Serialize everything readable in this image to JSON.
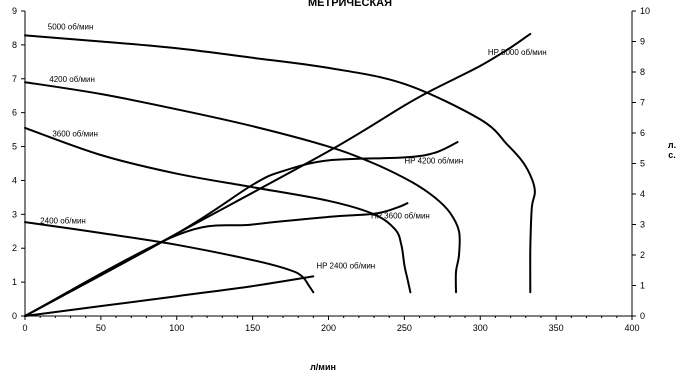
{
  "chart_data": {
    "type": "line",
    "title": "МЕТРИЧЕСКАЯ",
    "xlabel": "л/мин",
    "ylabel_right": "л. с.",
    "xlim": [
      0,
      400
    ],
    "ylim": [
      0,
      9
    ],
    "ylim_right": [
      0,
      10
    ],
    "x_ticks": [
      "0",
      "50",
      "100",
      "150",
      "200",
      "250",
      "300",
      "350",
      "400"
    ],
    "y_ticks": [
      "0",
      "1",
      "2",
      "3",
      "4",
      "5",
      "6",
      "7",
      "8",
      "9"
    ],
    "y_right_ticks": [
      "0",
      "1",
      "2",
      "3",
      "4",
      "5",
      "6",
      "7",
      "8",
      "9",
      "10"
    ],
    "grid": false,
    "series": [
      {
        "name": "5000 об/мин",
        "axis": "left",
        "x": [
          0,
          50,
          100,
          150,
          200,
          250,
          300,
          318,
          328,
          334,
          336,
          334,
          333,
          333
        ],
        "y": [
          8.28,
          8.1,
          7.9,
          7.62,
          7.32,
          6.85,
          5.8,
          5.05,
          4.55,
          4.05,
          3.65,
          3.2,
          2.0,
          0.7
        ]
      },
      {
        "name": "4200 об/мин",
        "axis": "left",
        "x": [
          0,
          50,
          100,
          150,
          200,
          230,
          255,
          270,
          280,
          286,
          286,
          284,
          284
        ],
        "y": [
          6.9,
          6.55,
          6.1,
          5.6,
          5.0,
          4.5,
          3.95,
          3.5,
          3.05,
          2.5,
          1.8,
          1.3,
          0.7
        ]
      },
      {
        "name": "3600 об/мин",
        "axis": "left",
        "x": [
          0,
          50,
          100,
          150,
          200,
          230,
          244,
          248,
          250,
          252,
          254
        ],
        "y": [
          5.55,
          4.75,
          4.2,
          3.8,
          3.4,
          3.0,
          2.55,
          2.1,
          1.5,
          1.1,
          0.7
        ]
      },
      {
        "name": "2400 об/мин",
        "axis": "left",
        "x": [
          0,
          50,
          100,
          150,
          175,
          183,
          187,
          190
        ],
        "y": [
          2.77,
          2.45,
          2.1,
          1.65,
          1.35,
          1.15,
          0.9,
          0.7
        ]
      },
      {
        "name": "HP 5000 об/мин",
        "axis": "right",
        "x": [
          0,
          100,
          200,
          250,
          270,
          300,
          320,
          333
        ],
        "y": [
          0.0,
          2.7,
          5.4,
          6.9,
          7.45,
          8.2,
          8.8,
          9.25
        ]
      },
      {
        "name": "HP 4200 об/мин",
        "axis": "right",
        "x": [
          0,
          100,
          150,
          170,
          200,
          250,
          270,
          285
        ],
        "y": [
          0.0,
          2.7,
          4.3,
          4.75,
          5.1,
          5.2,
          5.35,
          5.7
        ]
      },
      {
        "name": "HP 3600 об/мин",
        "axis": "right",
        "x": [
          0,
          100,
          150,
          200,
          230,
          245,
          252
        ],
        "y": [
          0.0,
          2.65,
          3.0,
          3.25,
          3.35,
          3.55,
          3.7
        ]
      },
      {
        "name": "HP 2400 об/мин",
        "axis": "right",
        "x": [
          0,
          100,
          150,
          190
        ],
        "y": [
          0.0,
          0.65,
          0.98,
          1.3
        ]
      }
    ],
    "labels": [
      {
        "text": "5000 об/мин",
        "x": 15,
        "y": 8.45,
        "axis": "left"
      },
      {
        "text": "4200 об/мин",
        "x": 16,
        "y": 6.9,
        "axis": "left"
      },
      {
        "text": "3600 об/мин",
        "x": 18,
        "y": 5.3,
        "axis": "left"
      },
      {
        "text": "2400 об/мин",
        "x": 10,
        "y": 2.73,
        "axis": "left"
      },
      {
        "text": "HP 5000 об/мин",
        "x": 305,
        "y": 8.55,
        "axis": "right"
      },
      {
        "text": "HP 4200 об/мин",
        "x": 250,
        "y": 5.0,
        "axis": "right"
      },
      {
        "text": "HP 3600 об/мин",
        "x": 228,
        "y": 3.2,
        "axis": "right"
      },
      {
        "text": "HP 2400 об/мин",
        "x": 192,
        "y": 1.55,
        "axis": "right"
      }
    ]
  }
}
